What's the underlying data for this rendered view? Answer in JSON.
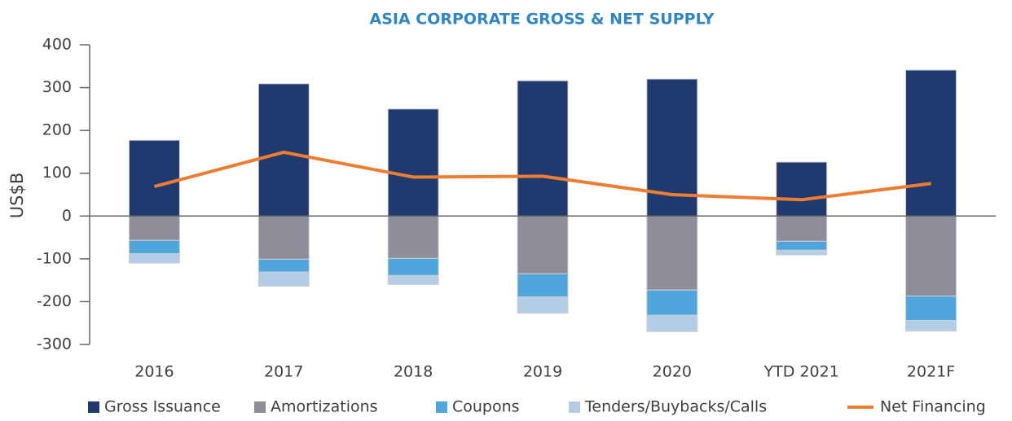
{
  "chart_data": {
    "type": "bar",
    "title": "ASIA CORPORATE GROSS & NET SUPPLY",
    "y_label": "US$B",
    "categories": [
      "2016",
      "2017",
      "2018",
      "2019",
      "2020",
      "YTD 2021",
      "2021F"
    ],
    "series": [
      {
        "name": "Gross Issuance",
        "color": "#1f3a6e",
        "values": [
          177,
          309,
          250,
          316,
          320,
          126,
          341
        ]
      },
      {
        "name": "Amortizations",
        "color": "#8e8e98",
        "values": [
          -57,
          -101,
          -99,
          -135,
          -173,
          -59,
          -187
        ]
      },
      {
        "name": "Coupons",
        "color": "#4ea6dc",
        "values": [
          -31,
          -30,
          -40,
          -54,
          -59,
          -21,
          -57
        ]
      },
      {
        "name": "Tenders/Buybacks/Calls",
        "color": "#b4cde6",
        "values": [
          -22,
          -33,
          -21,
          -38,
          -38,
          -11,
          -25
        ]
      },
      {
        "name": "Net Financing",
        "type": "line",
        "color": "#ee7d31",
        "values": [
          69,
          149,
          91,
          93,
          50,
          38,
          76
        ]
      }
    ],
    "stacked": true,
    "ylim": [
      -300,
      400
    ],
    "yticks": [
      -300,
      -200,
      -100,
      0,
      100,
      200,
      300,
      400
    ],
    "grid": false,
    "legend": "bottom"
  }
}
